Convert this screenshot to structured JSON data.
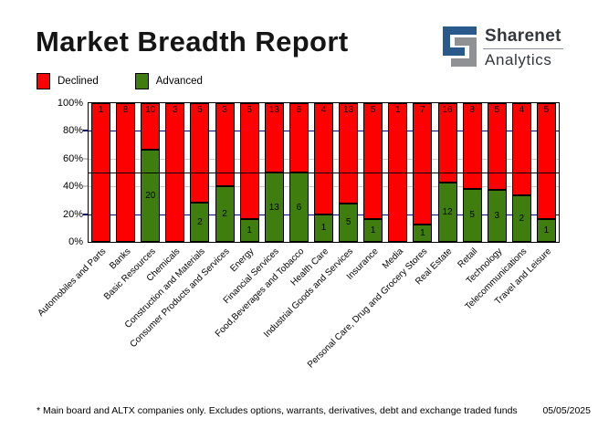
{
  "header": {
    "title": "Market Breadth Report",
    "logo": {
      "name": "Sharenet",
      "sub": "Analytics",
      "blue": "#2a5a8c",
      "gray": "#8f9194"
    }
  },
  "legend": {
    "declined_label": "Declined",
    "advanced_label": "Advanced"
  },
  "footer": {
    "note": "* Main board and ALTX companies only. Excludes options, warrants, derivatives, debt and exchange traded funds",
    "date": "05/05/2025"
  },
  "colors": {
    "declined": "#ff0000",
    "advanced": "#3f7d0e",
    "grid_navy": "#000080",
    "grid_gray": "#c9c9c9",
    "grid_black": "#000000"
  },
  "chart_data": {
    "type": "bar",
    "stacked": true,
    "normalized_to_100pct": true,
    "title": "Market Breadth Report",
    "xlabel": "",
    "ylabel": "",
    "ylim": [
      0,
      100
    ],
    "y_ticks": [
      0,
      20,
      40,
      60,
      80,
      100
    ],
    "y_tick_labels": [
      "0%",
      "20%",
      "40%",
      "60%",
      "80%",
      "100%"
    ],
    "legend_position": "top-left",
    "grid": "partial",
    "gridlines": [
      {
        "pct": 20,
        "color": "#000080",
        "on_top": false
      },
      {
        "pct": 40,
        "color": "#c9c9c9",
        "on_top": false
      },
      {
        "pct": 50,
        "color": "#000000",
        "on_top": true
      },
      {
        "pct": 60,
        "color": "#c9c9c9",
        "on_top": false
      },
      {
        "pct": 80,
        "color": "#000080",
        "on_top": false
      }
    ],
    "categories": [
      "Automobiles and Parts",
      "Banks",
      "Basic Resources",
      "Chemicals",
      "Construction and Materials",
      "Consumer Products and Services",
      "Energy",
      "Financial Services",
      "Food,Beverages and Tobacco",
      "Health Care",
      "Industrial Goods and Services",
      "Insurance",
      "Media",
      "Personal Care, Drug and Grocery Stores",
      "Real Estate",
      "Retail",
      "Technology",
      "Telecommunications",
      "Travel and Leisure"
    ],
    "series": [
      {
        "name": "Declined",
        "color": "#ff0000",
        "values": [
          1,
          8,
          10,
          3,
          5,
          3,
          5,
          13,
          6,
          4,
          13,
          5,
          1,
          7,
          16,
          8,
          5,
          4,
          5
        ]
      },
      {
        "name": "Advanced",
        "color": "#3f7d0e",
        "values": [
          0,
          0,
          20,
          0,
          2,
          2,
          1,
          13,
          6,
          1,
          5,
          1,
          0,
          1,
          12,
          5,
          3,
          2,
          1
        ]
      }
    ]
  }
}
